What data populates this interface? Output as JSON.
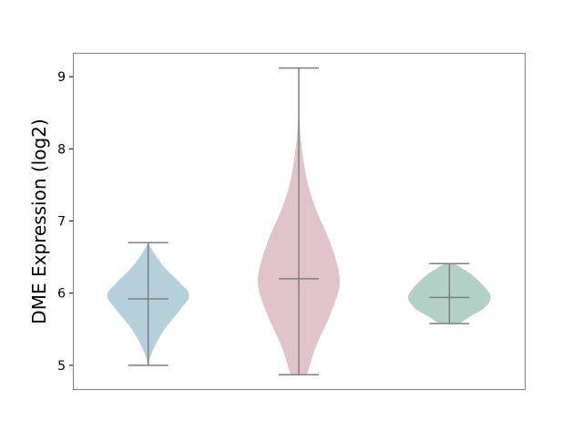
{
  "chart_data": {
    "type": "violin",
    "title": "",
    "xlabel": "",
    "ylabel": "DME Expression (log2)",
    "ylim": [
      4.67,
      9.33
    ],
    "yticks": [
      5,
      6,
      7,
      8,
      9
    ],
    "grid": false,
    "colors": {
      "line": "#7f7f7f",
      "frame": "#808080"
    },
    "violins": [
      {
        "color": "#b5cfdb",
        "min": 5.0,
        "max": 6.7,
        "median": 5.92,
        "profile": [
          [
            5.0,
            0.02
          ],
          [
            5.09,
            0.04
          ],
          [
            5.25,
            0.15
          ],
          [
            5.51,
            0.41
          ],
          [
            5.77,
            0.78
          ],
          [
            5.97,
            1.0
          ],
          [
            6.14,
            0.78
          ],
          [
            6.35,
            0.41
          ],
          [
            6.55,
            0.15
          ],
          [
            6.7,
            0.0
          ]
        ]
      },
      {
        "color": "#e0c4c9",
        "min": 4.87,
        "max": 9.12,
        "median": 6.2,
        "profile": [
          [
            4.87,
            0.2
          ],
          [
            5.29,
            0.44
          ],
          [
            5.72,
            0.78
          ],
          [
            6.17,
            1.0
          ],
          [
            6.68,
            0.78
          ],
          [
            7.19,
            0.4
          ],
          [
            7.62,
            0.18
          ],
          [
            8.25,
            0.03
          ],
          [
            8.8,
            0.005
          ],
          [
            9.12,
            0.0
          ]
        ]
      },
      {
        "color": "#b3d0c6",
        "min": 5.58,
        "max": 6.41,
        "median": 5.94,
        "profile": [
          [
            5.58,
            0.26
          ],
          [
            5.67,
            0.49
          ],
          [
            5.8,
            0.86
          ],
          [
            5.97,
            1.0
          ],
          [
            6.21,
            0.64
          ],
          [
            6.33,
            0.35
          ],
          [
            6.41,
            0.12
          ]
        ]
      }
    ]
  }
}
